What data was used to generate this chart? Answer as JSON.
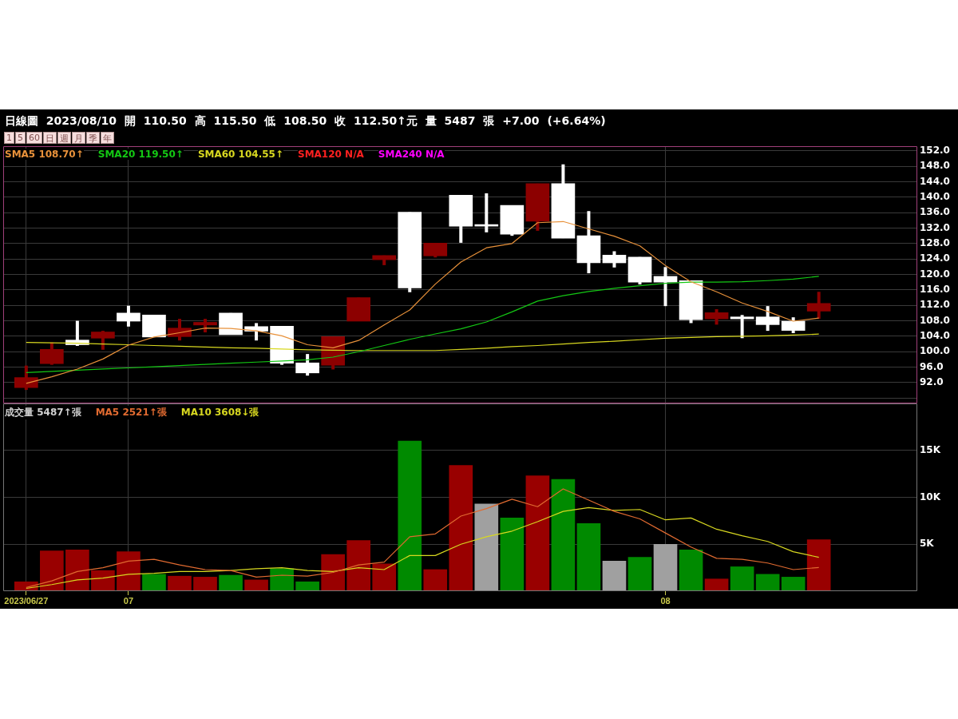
{
  "chart_data": [
    {
      "type": "candlestick",
      "title": "日線圖 2023/08/10 開 110.50 高 115.50 低 108.50 收 112.50↑元 量 5487 張 +7.00 (+6.64%)",
      "annotations": [
        "1",
        "5",
        "60",
        "日",
        "週",
        "月",
        "季",
        "年"
      ],
      "categories": [
        null,
        null,
        null,
        null,
        null,
        null,
        null,
        null,
        null,
        null,
        null,
        null,
        null,
        null,
        null,
        null,
        null,
        null,
        null,
        null,
        null,
        null,
        null,
        null,
        null,
        null,
        null,
        null,
        null,
        null,
        null,
        null
      ],
      "ohlc": [
        [
          90.7,
          96.4,
          90.1,
          93.3
        ],
        [
          96.9,
          102.4,
          96.6,
          100.6
        ],
        [
          103.0,
          108.0,
          101.5,
          101.8
        ],
        [
          103.5,
          105.4,
          100.5,
          105.1
        ],
        [
          110.0,
          111.9,
          106.5,
          107.9
        ],
        [
          109.5,
          109.5,
          103.8,
          103.8
        ],
        [
          103.9,
          108.5,
          102.9,
          106.1
        ],
        [
          106.9,
          108.5,
          105.0,
          107.6
        ],
        [
          110.0,
          110.0,
          104.4,
          104.4
        ],
        [
          106.5,
          107.4,
          102.9,
          105.3
        ],
        [
          106.6,
          106.6,
          96.6,
          97.0
        ],
        [
          97.1,
          99.4,
          93.8,
          94.5
        ],
        [
          96.5,
          103.9,
          95.4,
          103.9
        ],
        [
          107.9,
          114.0,
          107.9,
          114.0
        ],
        [
          123.8,
          124.9,
          122.4,
          124.9
        ],
        [
          136.1,
          136.1,
          115.4,
          116.5
        ],
        [
          124.8,
          128.1,
          124.4,
          128.1
        ],
        [
          140.5,
          140.5,
          128.2,
          132.5
        ],
        [
          132.8,
          141.0,
          130.9,
          132.5
        ],
        [
          137.9,
          137.9,
          130.0,
          130.4
        ],
        [
          133.8,
          143.5,
          131.3,
          143.5
        ],
        [
          143.5,
          148.5,
          129.4,
          129.4
        ],
        [
          130.0,
          136.4,
          120.3,
          123.0
        ],
        [
          125.0,
          126.0,
          121.8,
          123.0
        ],
        [
          124.5,
          124.5,
          117.4,
          118.0
        ],
        [
          119.5,
          121.9,
          111.8,
          118.0
        ],
        [
          118.4,
          118.4,
          107.4,
          108.3
        ],
        [
          108.5,
          111.0,
          107.0,
          110.1
        ],
        [
          109.0,
          109.5,
          103.5,
          108.5
        ],
        [
          109.0,
          111.8,
          105.4,
          107.0
        ],
        [
          107.9,
          108.9,
          104.8,
          105.5
        ],
        [
          110.5,
          115.5,
          108.5,
          112.5
        ]
      ],
      "colors": [
        "#8c0000",
        "#8c0000",
        "#ffffff",
        "#8c0000",
        "#ffffff",
        "#ffffff",
        "#8c0000",
        "#8c0000",
        "#ffffff",
        "#ffffff",
        "#ffffff",
        "#ffffff",
        "#8c0000",
        "#8c0000",
        "#8c0000",
        "#ffffff",
        "#8c0000",
        "#ffffff",
        "#ffffff",
        "#ffffff",
        "#8c0000",
        "#ffffff",
        "#ffffff",
        "#ffffff",
        "#ffffff",
        "#ffffff",
        "#ffffff",
        "#8c0000",
        "#ffffff",
        "#ffffff",
        "#ffffff",
        "#8c0000"
      ],
      "series": [
        {
          "name": "SMA5 108.70↑",
          "type": "line",
          "color": "#e8913a",
          "values": [
            91.8,
            93.5,
            95.5,
            98.1,
            101.7,
            103.8,
            104.9,
            106.1,
            106.0,
            105.4,
            104.1,
            101.8,
            101.0,
            102.9,
            106.9,
            110.8,
            117.5,
            123.2,
            126.9,
            128.0,
            133.4,
            133.7,
            131.8,
            129.9,
            127.4,
            122.3,
            118.1,
            115.5,
            112.6,
            110.4,
            107.9,
            108.7
          ]
        },
        {
          "name": "SMA20 119.50↑",
          "type": "line",
          "color": "#14c814",
          "values": [
            94.6,
            94.9,
            95.2,
            95.5,
            95.8,
            96.1,
            96.4,
            96.7,
            97.0,
            97.3,
            97.6,
            97.9,
            98.6,
            100.0,
            101.6,
            103.2,
            104.6,
            105.9,
            107.7,
            110.3,
            113.1,
            114.5,
            115.6,
            116.4,
            117.1,
            117.7,
            118.0,
            118.0,
            118.1,
            118.4,
            118.8,
            119.5
          ]
        },
        {
          "name": "SMA60 104.55↑",
          "type": "line",
          "color": "#d8d820",
          "values": [
            102.4,
            102.3,
            102.2,
            102.0,
            101.8,
            101.6,
            101.4,
            101.2,
            101.0,
            100.9,
            100.7,
            100.5,
            100.4,
            100.3,
            100.3,
            100.3,
            100.3,
            100.6,
            100.9,
            101.3,
            101.6,
            102.0,
            102.4,
            102.7,
            103.1,
            103.5,
            103.7,
            103.9,
            104.0,
            104.1,
            104.3,
            104.55
          ]
        },
        {
          "name": "SMA120 N/A",
          "type": "line",
          "color": "#ff2020",
          "values": [
            null,
            null,
            null,
            null,
            null,
            null,
            null,
            null,
            null,
            null,
            null,
            null,
            null,
            null,
            null,
            null,
            null,
            null,
            null,
            null,
            null,
            null,
            null,
            null,
            null,
            null,
            null,
            null,
            null,
            null,
            null,
            null
          ]
        },
        {
          "name": "SMA240 N/A",
          "type": "line",
          "color": "#ff00ff",
          "values": [
            null,
            null,
            null,
            null,
            null,
            null,
            null,
            null,
            null,
            null,
            null,
            null,
            null,
            null,
            null,
            null,
            null,
            null,
            null,
            null,
            null,
            null,
            null,
            null,
            null,
            null,
            null,
            null,
            null,
            null,
            null,
            null
          ]
        }
      ],
      "ylim": [
        86.6,
        153.2
      ],
      "yticks": [
        {
          "value": 88,
          "label": null
        },
        {
          "value": 92,
          "label": "92.0"
        },
        {
          "value": 96,
          "label": "96.0"
        },
        {
          "value": 100,
          "label": "100.0"
        },
        {
          "value": 104,
          "label": "104.0"
        },
        {
          "value": 108,
          "label": "108.0"
        },
        {
          "value": 112,
          "label": "112.0"
        },
        {
          "value": 116,
          "label": "116.0"
        },
        {
          "value": 120,
          "label": "120.0"
        },
        {
          "value": 124,
          "label": "124.0"
        },
        {
          "value": 128,
          "label": "128.0"
        },
        {
          "value": 132,
          "label": "132.0"
        },
        {
          "value": 136,
          "label": "136.0"
        },
        {
          "value": 140,
          "label": "140.0"
        },
        {
          "value": 144,
          "label": "144.0"
        },
        {
          "value": 148,
          "label": "148.0"
        },
        {
          "value": 152,
          "label": "152.0"
        }
      ],
      "grid": true,
      "legend": "top left",
      "tick_labels": "y"
    },
    {
      "type": "bar",
      "title": "成交量 5487↑張",
      "categories": [
        "2023/06/27",
        null,
        null,
        null,
        "07",
        null,
        null,
        null,
        null,
        null,
        null,
        null,
        null,
        null,
        null,
        null,
        null,
        null,
        null,
        null,
        null,
        null,
        null,
        null,
        null,
        "08",
        null,
        null,
        null,
        null,
        null,
        null
      ],
      "series": [
        {
          "colors": [
            "#990000",
            "#990000",
            "#990000",
            "#990000",
            "#990000",
            "#008a00",
            "#990000",
            "#990000",
            "#008a00",
            "#990000",
            "#008a00",
            "#008a00",
            "#990000",
            "#990000",
            "#990000",
            "#008a00",
            "#990000",
            "#990000",
            "#a0a0a0",
            "#008a00",
            "#990000",
            "#008a00",
            "#008a00",
            "#a0a0a0",
            "#008a00",
            "#a0a0a0",
            "#008a00",
            "#990000",
            "#008a00",
            "#008a00",
            "#008a00",
            "#990000"
          ],
          "values": [
            1000,
            4300,
            4400,
            2200,
            4200,
            1800,
            1600,
            1500,
            1700,
            1200,
            2400,
            1000,
            3900,
            5400,
            2900,
            16000,
            2300,
            13400,
            9300,
            7800,
            12300,
            11900,
            7200,
            3200,
            3600,
            5000,
            4400,
            1300,
            2600,
            1800,
            1500,
            5487
          ]
        },
        {
          "name": "MA5 2521↑張",
          "type": "line",
          "color": "#e06a30",
          "values": [
            400,
            1100,
            2100,
            2500,
            3200,
            3400,
            2800,
            2300,
            2200,
            1500,
            1700,
            1600,
            2000,
            2800,
            3100,
            5800,
            6100,
            8000,
            8800,
            9800,
            9000,
            10900,
            9700,
            8500,
            7700,
            6200,
            4700,
            3500,
            3400,
            3000,
            2300,
            2521
          ]
        },
        {
          "name": "MA10 3608↓張",
          "type": "line",
          "color": "#d8d820",
          "values": [
            300,
            700,
            1200,
            1400,
            1800,
            1900,
            2100,
            2100,
            2200,
            2400,
            2500,
            2200,
            2100,
            2500,
            2300,
            3800,
            3800,
            5000,
            5800,
            6400,
            7400,
            8500,
            8900,
            8600,
            8700,
            7600,
            7800,
            6600,
            5900,
            5300,
            4200,
            3608
          ]
        }
      ],
      "ylim": [
        0,
        20000
      ],
      "yticks": [
        {
          "value": 5000,
          "label": "5K"
        },
        {
          "value": 10000,
          "label": "10K"
        },
        {
          "value": 15000,
          "label": "15K"
        }
      ],
      "grid": true,
      "legend": "top left"
    }
  ]
}
